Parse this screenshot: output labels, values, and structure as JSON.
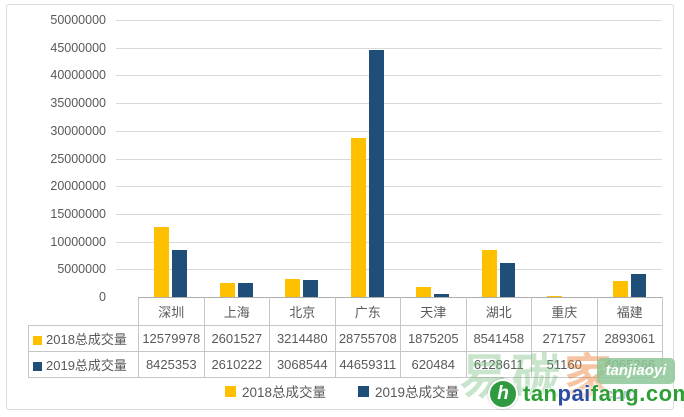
{
  "chart_data": {
    "type": "bar",
    "categories": [
      "深圳",
      "上海",
      "北京",
      "广东",
      "天津",
      "湖北",
      "重庆",
      "福建"
    ],
    "series": [
      {
        "name": "2018总成交量",
        "color": "#FFC000",
        "values": [
          12579978,
          2601527,
          3214480,
          28755708,
          1875205,
          8541458,
          271757,
          2893061
        ]
      },
      {
        "name": "2019总成交量",
        "color": "#1F4E79",
        "values": [
          8425353,
          2610222,
          3068544,
          44659311,
          620484,
          6128611,
          51160,
          4065266
        ]
      }
    ],
    "title": "",
    "xlabel": "",
    "ylabel": "",
    "ylim": [
      0,
      50000000
    ],
    "ytick_step": 5000000,
    "grid": true,
    "legend_position": "bottom",
    "data_table_shown": true
  },
  "legend": {
    "items": [
      {
        "label": "2018总成交量",
        "color": "#FFC000"
      },
      {
        "label": "2019总成交量",
        "color": "#1F4E79"
      }
    ]
  },
  "watermark": {
    "brand_cjk_green": "易碳",
    "brand_cjk_orange": "家",
    "badge_text": "tanjiaoyi",
    "badge_com": ".com",
    "icon_glyph": "h",
    "site_part_tan": "tan",
    "site_part_pai": "pai",
    "site_part_fang": "fang",
    "site_part_com": ".com",
    "colors": {
      "green": "#2E9E36",
      "blue": "#2B4EA2",
      "badge_bg": "#8DC796"
    }
  }
}
